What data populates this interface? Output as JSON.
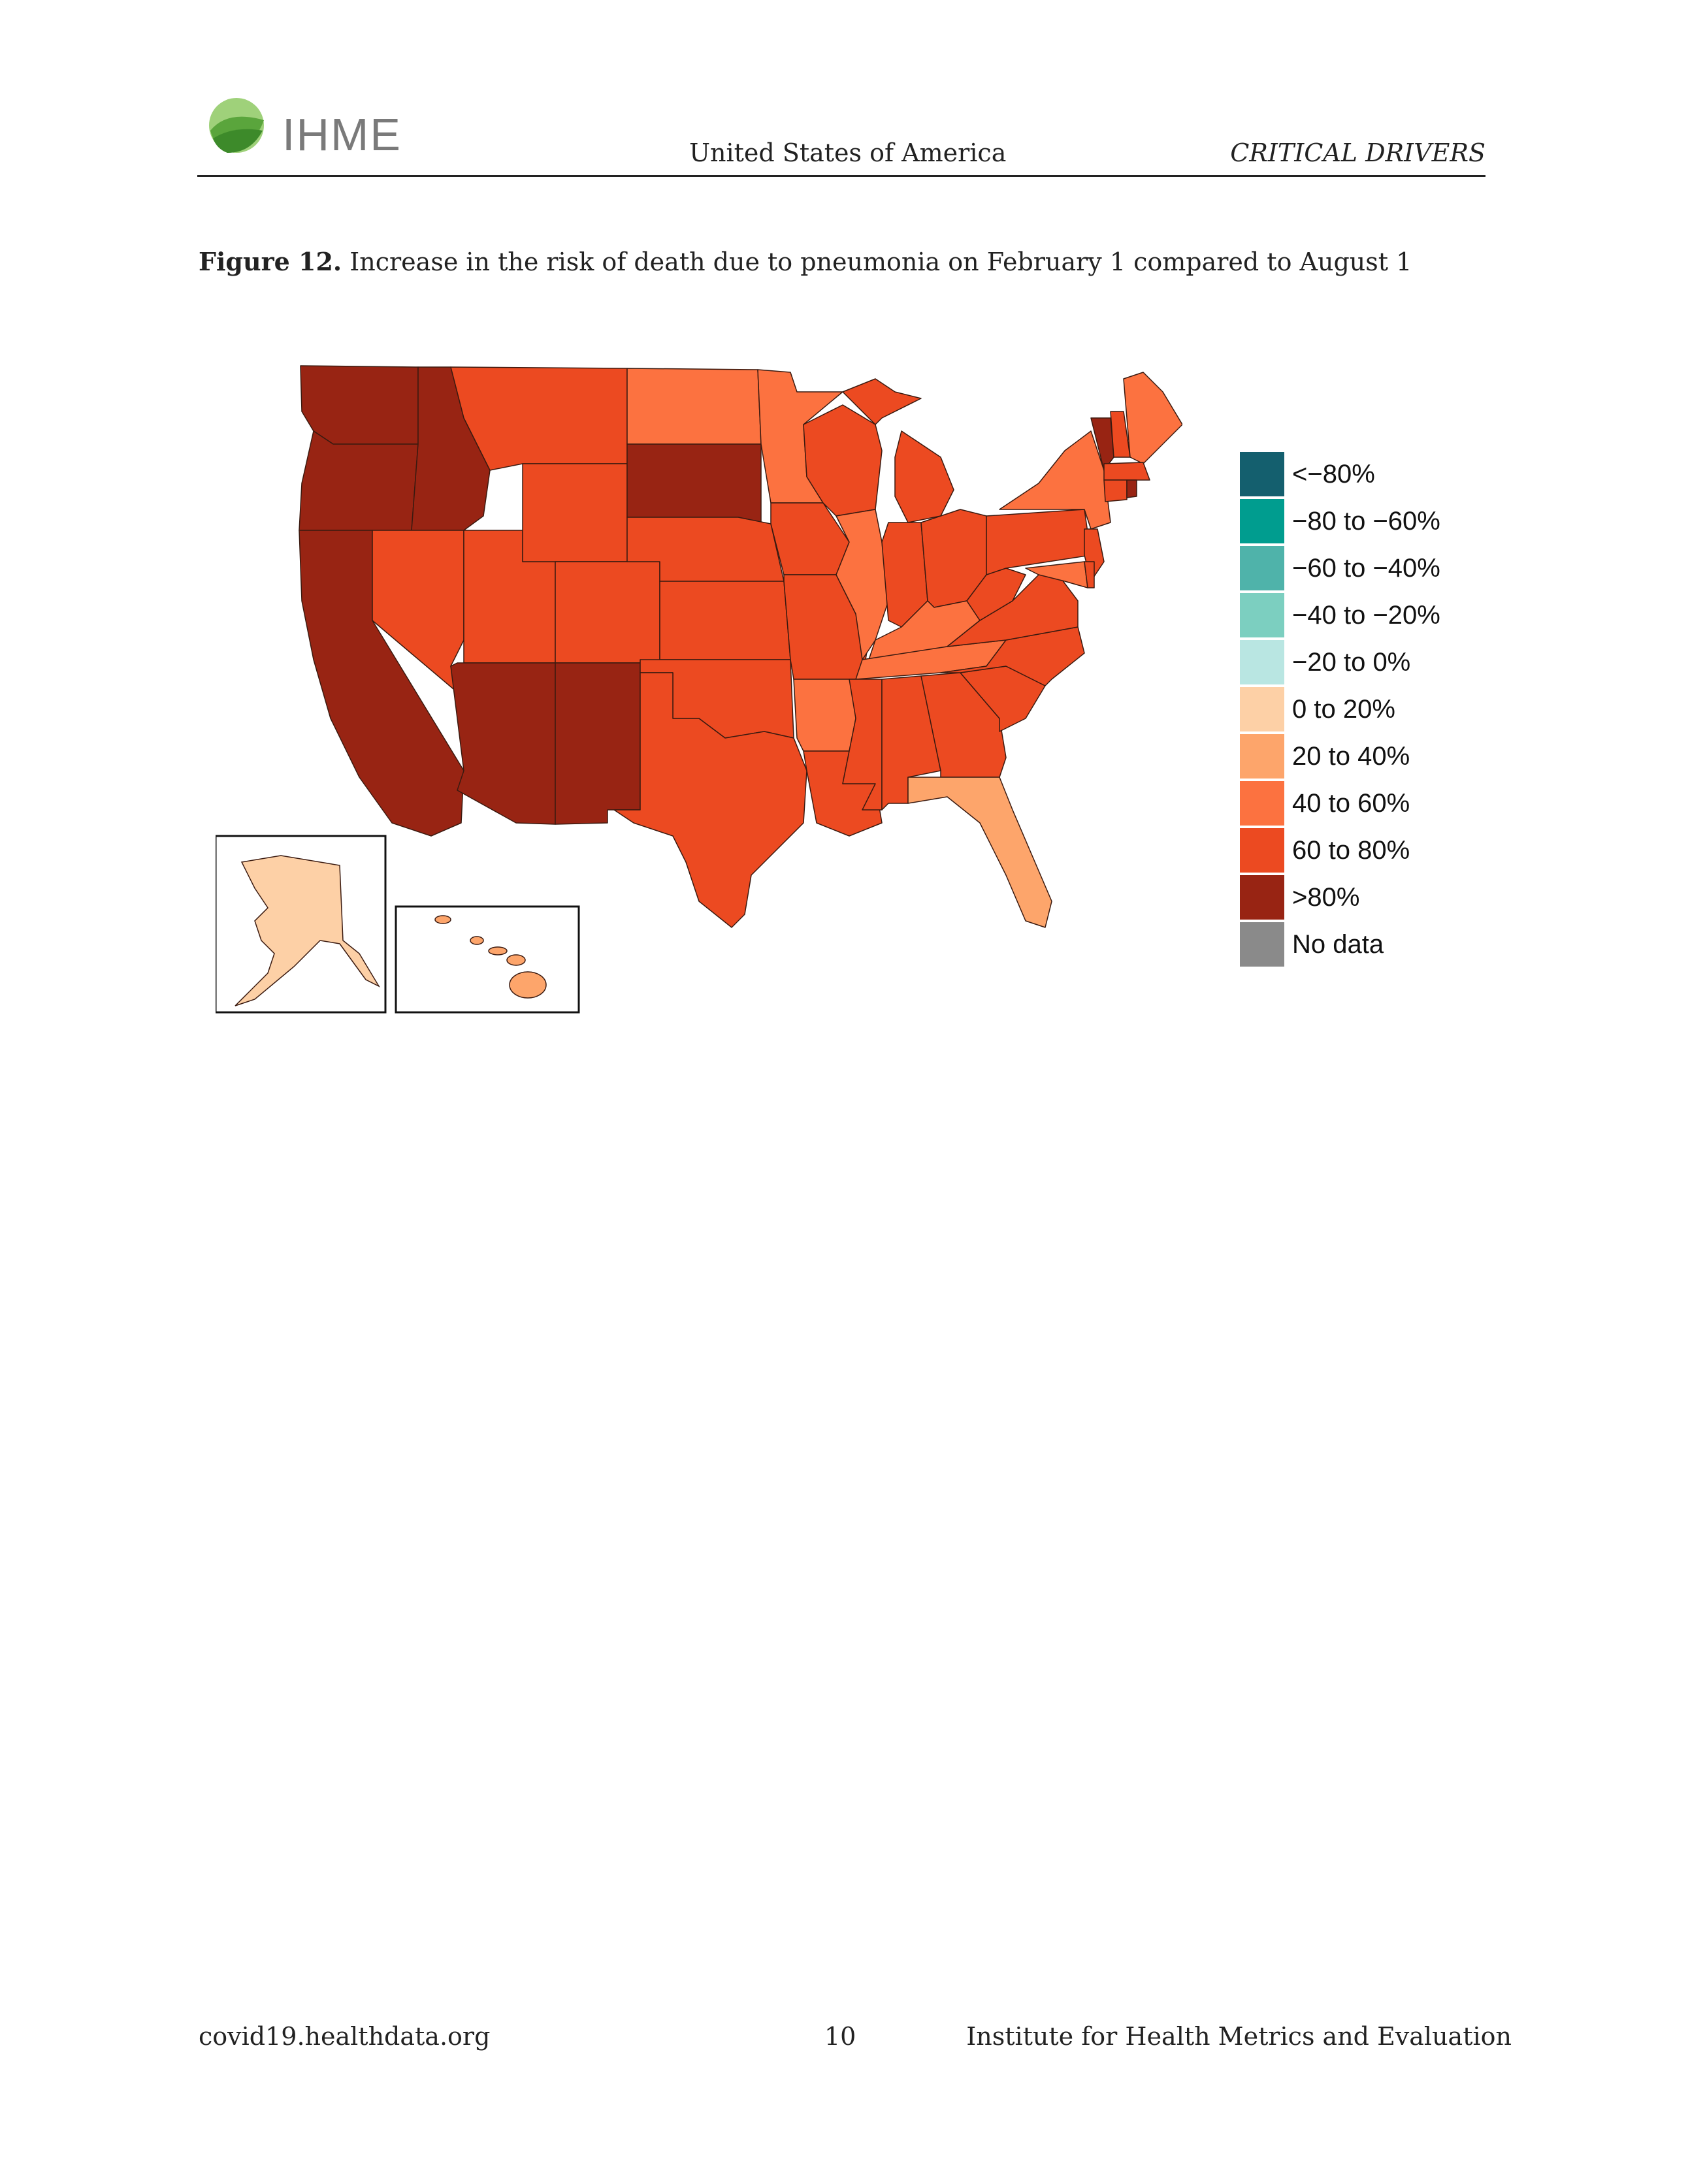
{
  "header": {
    "logo_text": "IHME",
    "country": "United States of America",
    "section": "CRITICAL DRIVERS"
  },
  "figure": {
    "label": "Figure 12.",
    "caption": "Increase in the risk of death due to pneumonia on February 1 compared to August 1"
  },
  "legend": {
    "items": [
      {
        "label": "<−80%",
        "color": "#145f6e"
      },
      {
        "label": "−80 to −60%",
        "color": "#009d8f"
      },
      {
        "label": "−60 to −40%",
        "color": "#4fb3aa"
      },
      {
        "label": "−40 to −20%",
        "color": "#7ccfc0"
      },
      {
        "label": "−20 to 0%",
        "color": "#b9e6e2"
      },
      {
        "label": "0 to 20%",
        "color": "#fdd0a6"
      },
      {
        "label": "20 to 40%",
        "color": "#fda56b"
      },
      {
        "label": "40 to 60%",
        "color": "#fc7240"
      },
      {
        "label": "60 to 80%",
        "color": "#ec4a21"
      },
      {
        "label": ">80%",
        "color": "#982413"
      },
      {
        "label": "No data",
        "color": "#8a8a8a"
      }
    ]
  },
  "footer": {
    "left": "covid19.healthdata.org",
    "page": "10",
    "right": "Institute for Health Metrics and Evaluation"
  }
}
